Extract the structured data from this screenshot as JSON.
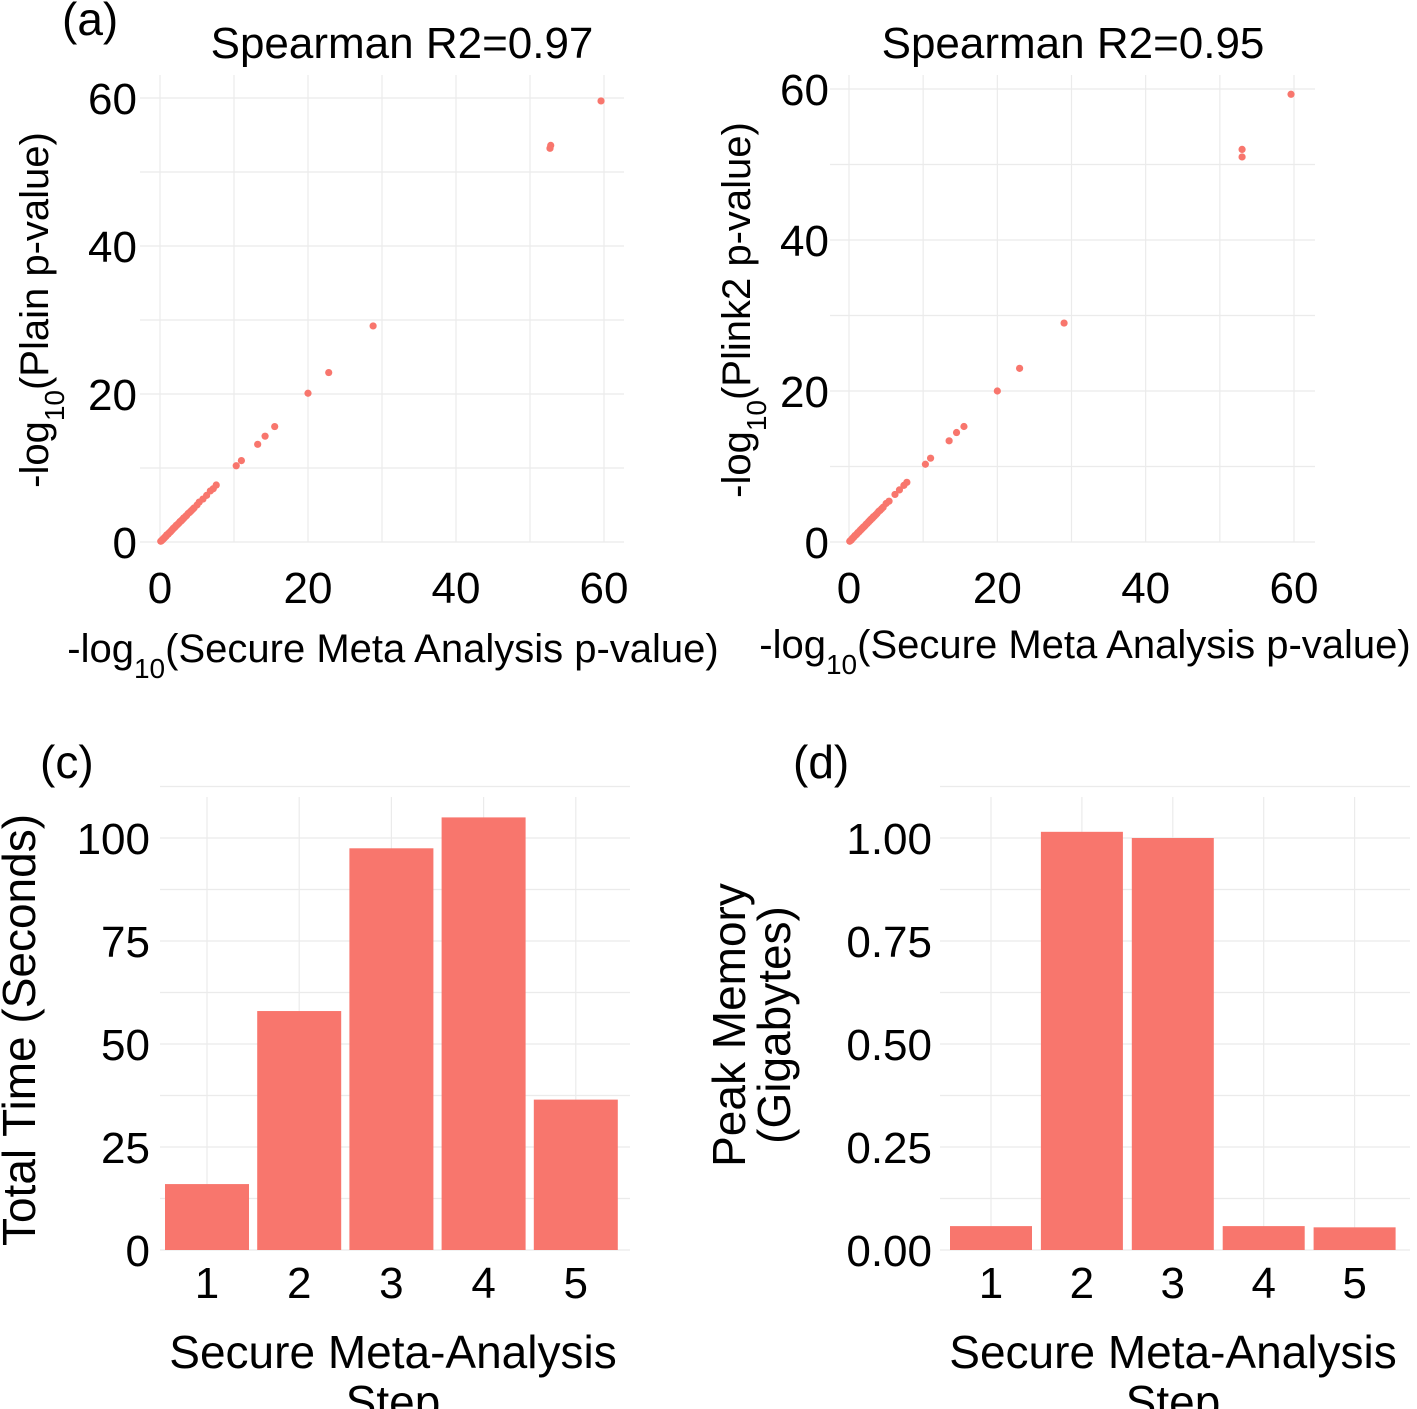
{
  "chart_data": [
    {
      "id": "a",
      "type": "scatter",
      "panel_label": "(a)",
      "title": "Spearman R2=0.97",
      "xlabel": {
        "prefix": "-log",
        "sub": "10",
        "suffix": "(Secure Meta Analysis p-value)"
      },
      "ylabel": {
        "prefix": "-log",
        "sub": "10",
        "suffix": "(Plain p-value)"
      },
      "xlim": [
        0,
        62
      ],
      "ylim": [
        0,
        62
      ],
      "xticks": [
        0,
        20,
        40,
        60
      ],
      "yticks": [
        0,
        20,
        40,
        60
      ],
      "points": [
        [
          0.1,
          0.1
        ],
        [
          0.2,
          0.15
        ],
        [
          0.3,
          0.3
        ],
        [
          0.4,
          0.35
        ],
        [
          0.5,
          0.5
        ],
        [
          0.6,
          0.55
        ],
        [
          0.7,
          0.7
        ],
        [
          0.8,
          0.75
        ],
        [
          0.9,
          0.95
        ],
        [
          1.0,
          1.0
        ],
        [
          1.1,
          1.05
        ],
        [
          1.2,
          1.2
        ],
        [
          1.3,
          1.3
        ],
        [
          1.4,
          1.35
        ],
        [
          1.5,
          1.5
        ],
        [
          1.6,
          1.6
        ],
        [
          1.7,
          1.7
        ],
        [
          1.8,
          1.85
        ],
        [
          1.9,
          1.9
        ],
        [
          2.0,
          2.0
        ],
        [
          2.1,
          2.1
        ],
        [
          2.2,
          2.25
        ],
        [
          2.3,
          2.3
        ],
        [
          2.4,
          2.4
        ],
        [
          2.5,
          2.5
        ],
        [
          2.6,
          2.6
        ],
        [
          2.7,
          2.75
        ],
        [
          2.8,
          2.8
        ],
        [
          2.9,
          2.9
        ],
        [
          3.0,
          3.0
        ],
        [
          3.1,
          3.1
        ],
        [
          3.2,
          3.25
        ],
        [
          3.3,
          3.3
        ],
        [
          3.5,
          3.5
        ],
        [
          3.6,
          3.6
        ],
        [
          3.8,
          3.85
        ],
        [
          4.0,
          4.0
        ],
        [
          4.2,
          4.2
        ],
        [
          4.4,
          4.4
        ],
        [
          4.6,
          4.6
        ],
        [
          5.0,
          5.0
        ],
        [
          5.3,
          5.4
        ],
        [
          5.8,
          5.8
        ],
        [
          6.3,
          6.3
        ],
        [
          6.8,
          6.9
        ],
        [
          7.2,
          7.2
        ],
        [
          7.6,
          7.7
        ],
        [
          10.3,
          10.3
        ],
        [
          11.0,
          11.0
        ],
        [
          13.2,
          13.2
        ],
        [
          14.2,
          14.3
        ],
        [
          15.5,
          15.6
        ],
        [
          20.0,
          20.1
        ],
        [
          22.8,
          22.9
        ],
        [
          28.8,
          29.2
        ],
        [
          52.7,
          53.2
        ],
        [
          52.8,
          53.6
        ],
        [
          59.6,
          59.6
        ]
      ]
    },
    {
      "id": "b",
      "type": "scatter",
      "panel_label": "",
      "title": "Spearman R2=0.95",
      "xlabel": {
        "prefix": "-log",
        "sub": "10",
        "suffix": "(Secure Meta Analysis p-value)"
      },
      "ylabel": {
        "prefix": "-log",
        "sub": "10",
        "suffix": "(Plink2 p-value)"
      },
      "xlim": [
        0,
        62
      ],
      "ylim": [
        0,
        61
      ],
      "xticks": [
        0,
        20,
        40,
        60
      ],
      "yticks": [
        0,
        20,
        40,
        60
      ],
      "points": [
        [
          0.1,
          0.1
        ],
        [
          0.2,
          0.2
        ],
        [
          0.3,
          0.25
        ],
        [
          0.4,
          0.4
        ],
        [
          0.5,
          0.5
        ],
        [
          0.6,
          0.6
        ],
        [
          0.7,
          0.7
        ],
        [
          0.8,
          0.85
        ],
        [
          0.9,
          0.9
        ],
        [
          1.0,
          1.0
        ],
        [
          1.1,
          1.1
        ],
        [
          1.2,
          1.25
        ],
        [
          1.3,
          1.3
        ],
        [
          1.4,
          1.4
        ],
        [
          1.5,
          1.55
        ],
        [
          1.6,
          1.6
        ],
        [
          1.7,
          1.75
        ],
        [
          1.8,
          1.8
        ],
        [
          1.9,
          1.95
        ],
        [
          2.0,
          2.0
        ],
        [
          2.1,
          2.1
        ],
        [
          2.2,
          2.2
        ],
        [
          2.3,
          2.35
        ],
        [
          2.4,
          2.4
        ],
        [
          2.5,
          2.5
        ],
        [
          2.6,
          2.65
        ],
        [
          2.7,
          2.7
        ],
        [
          2.8,
          2.85
        ],
        [
          2.9,
          2.9
        ],
        [
          3.0,
          3.05
        ],
        [
          3.1,
          3.1
        ],
        [
          3.2,
          3.2
        ],
        [
          3.3,
          3.35
        ],
        [
          3.4,
          3.4
        ],
        [
          3.6,
          3.6
        ],
        [
          3.8,
          3.8
        ],
        [
          4.0,
          4.05
        ],
        [
          4.2,
          4.2
        ],
        [
          4.4,
          4.4
        ],
        [
          4.6,
          4.6
        ],
        [
          5.0,
          5.1
        ],
        [
          5.4,
          5.4
        ],
        [
          6.2,
          6.3
        ],
        [
          6.8,
          6.9
        ],
        [
          7.4,
          7.5
        ],
        [
          7.8,
          7.9
        ],
        [
          10.3,
          10.3
        ],
        [
          11.0,
          11.1
        ],
        [
          13.5,
          13.4
        ],
        [
          14.5,
          14.5
        ],
        [
          15.5,
          15.3
        ],
        [
          20.0,
          20.0
        ],
        [
          23.0,
          23.0
        ],
        [
          29.0,
          29.0
        ],
        [
          53.0,
          51.0
        ],
        [
          53.0,
          52.0
        ],
        [
          59.6,
          59.3
        ]
      ]
    },
    {
      "id": "c",
      "type": "bar",
      "panel_label": "(c)",
      "title": "",
      "categories": [
        "1",
        "2",
        "3",
        "4",
        "5"
      ],
      "values": [
        16,
        58,
        97.5,
        105,
        36.5
      ],
      "xlabel": [
        "Secure Meta-Analysis",
        "Step"
      ],
      "ylabel": [
        "Total Time (Seconds)"
      ],
      "ylim": [
        0,
        110
      ],
      "yticks": [
        0,
        25,
        50,
        75,
        100
      ],
      "ytick_labels": [
        "0",
        "25",
        "50",
        "75",
        "100"
      ]
    },
    {
      "id": "d",
      "type": "bar",
      "panel_label": "(d)",
      "title": "",
      "categories": [
        "1",
        "2",
        "3",
        "4",
        "5"
      ],
      "values": [
        0.058,
        1.015,
        1.0,
        0.058,
        0.055
      ],
      "xlabel": [
        "Secure Meta-Analysis",
        "Step"
      ],
      "ylabel": [
        "Peak Memory",
        "(Gigabytes)"
      ],
      "ylim": [
        0,
        1.1
      ],
      "yticks": [
        0,
        0.25,
        0.5,
        0.75,
        1.0
      ],
      "ytick_labels": [
        "0.00",
        "0.25",
        "0.50",
        "0.75",
        "1.00"
      ]
    }
  ]
}
